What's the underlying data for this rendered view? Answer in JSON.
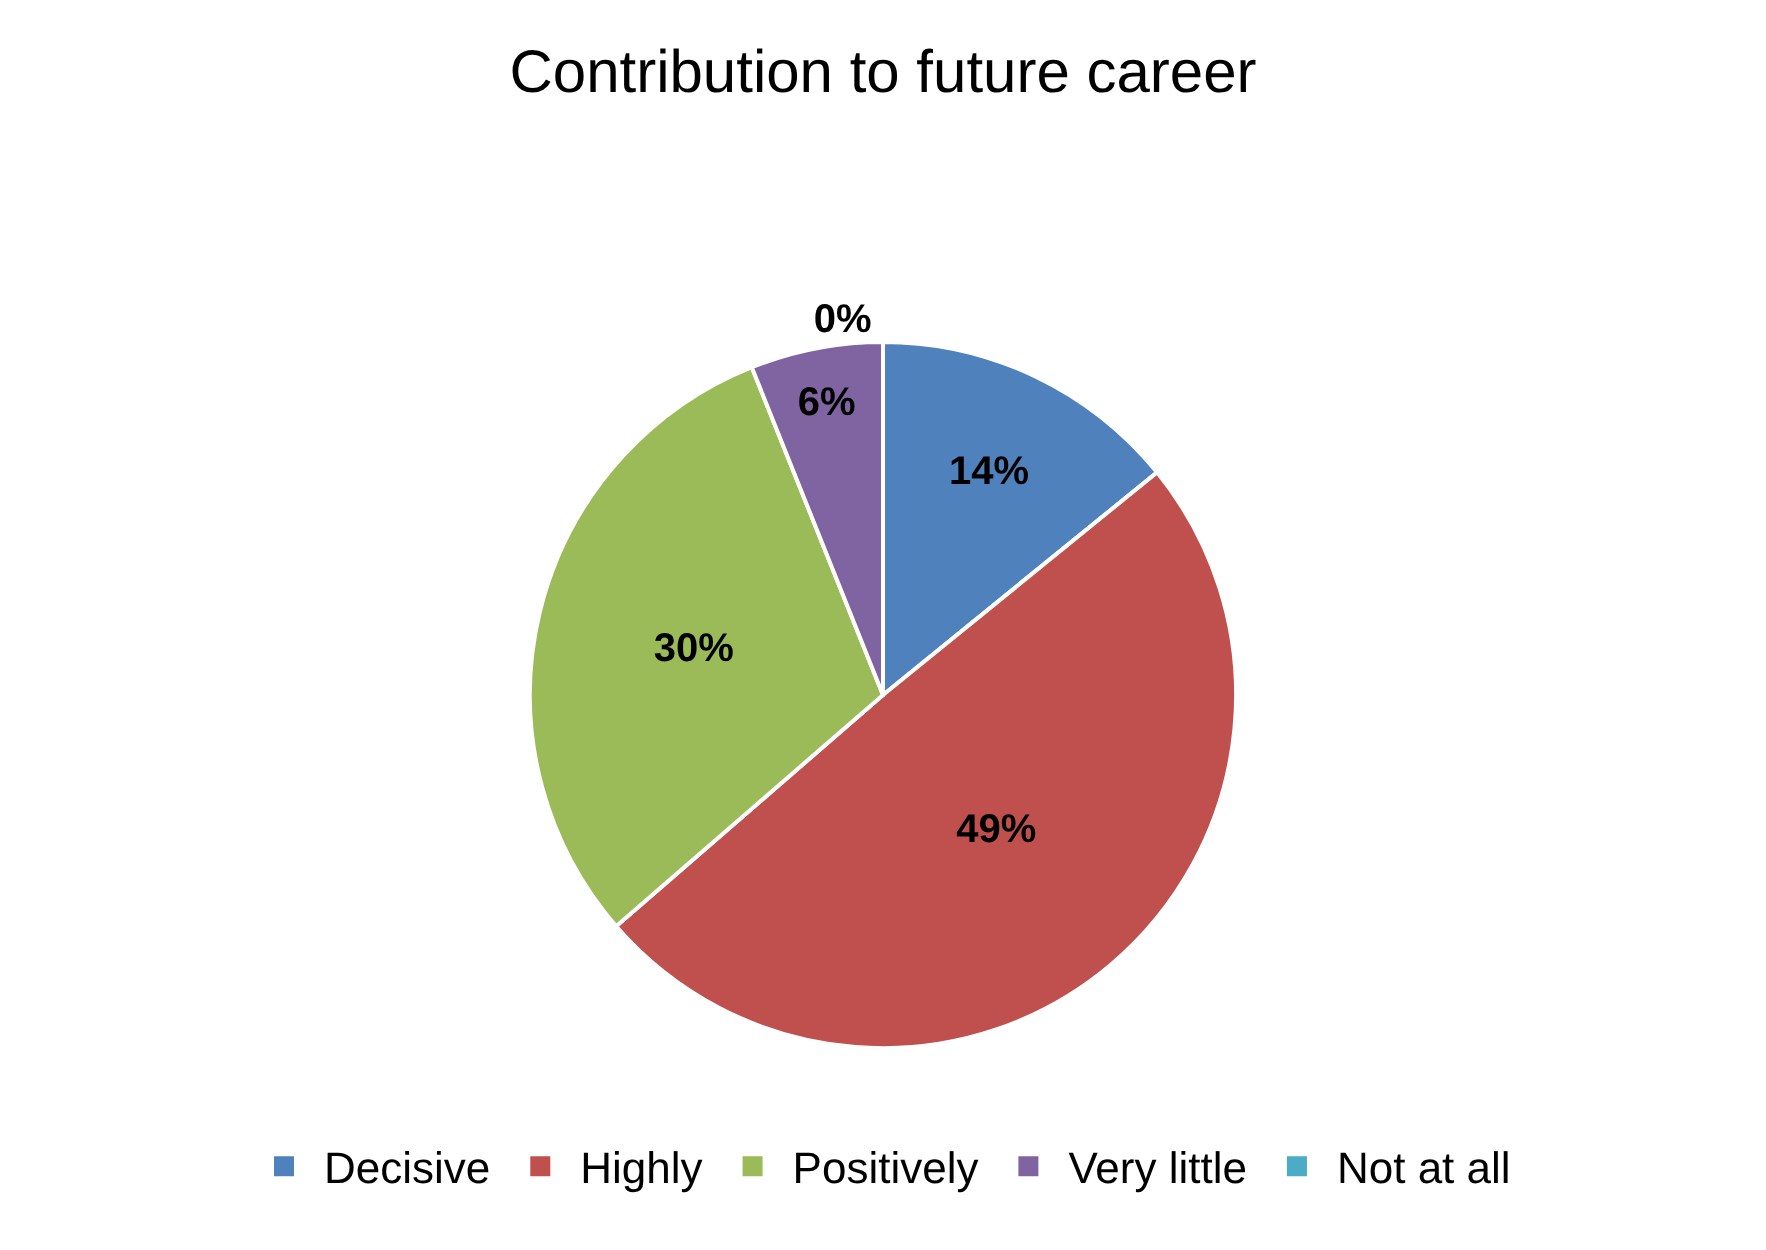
{
  "chart_data": {
    "type": "pie",
    "title": "Contribution to future career",
    "categories": [
      "Decisive",
      "Highly",
      "Positively",
      "Very little",
      "Not at all"
    ],
    "values": [
      14,
      49,
      30,
      6,
      0
    ],
    "value_labels": [
      "14%",
      "49%",
      "30%",
      "6%",
      "0%"
    ],
    "colors": [
      "#4f81bd",
      "#c0504d",
      "#9bbb59",
      "#8064a2",
      "#4bacc6"
    ],
    "legend": "bottom"
  }
}
